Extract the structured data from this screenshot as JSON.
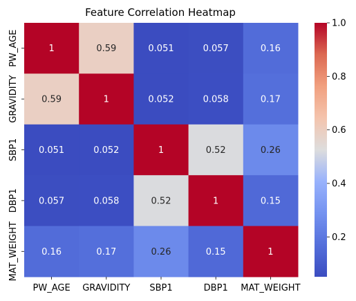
{
  "chart_data": {
    "type": "heatmap",
    "title": "Feature Correlation Heatmap",
    "xlabel": "",
    "ylabel": "",
    "x_categories": [
      "PW_AGE",
      "GRAVIDITY",
      "SBP1",
      "DBP1",
      "MAT_WEIGHT"
    ],
    "y_categories": [
      "PW_AGE",
      "GRAVIDITY",
      "SBP1",
      "DBP1",
      "MAT_WEIGHT"
    ],
    "values": [
      [
        1,
        0.59,
        0.051,
        0.057,
        0.16
      ],
      [
        0.59,
        1,
        0.052,
        0.058,
        0.17
      ],
      [
        0.051,
        0.052,
        1,
        0.52,
        0.26
      ],
      [
        0.057,
        0.058,
        0.52,
        1,
        0.15
      ],
      [
        0.16,
        0.17,
        0.26,
        0.15,
        1
      ]
    ],
    "labels": [
      [
        "1",
        "0.59",
        "0.051",
        "0.057",
        "0.16"
      ],
      [
        "0.59",
        "1",
        "0.052",
        "0.058",
        "0.17"
      ],
      [
        "0.051",
        "0.052",
        "1",
        "0.52",
        "0.26"
      ],
      [
        "0.057",
        "0.058",
        "0.52",
        "1",
        "0.15"
      ],
      [
        "0.16",
        "0.17",
        "0.26",
        "0.15",
        "1"
      ]
    ],
    "colormap": "coolwarm",
    "color_range": [
      0.051,
      1.0
    ],
    "colorbar": {
      "ticks": [
        0.2,
        0.4,
        0.6,
        0.8,
        1.0
      ],
      "tick_labels": [
        "0.2",
        "0.4",
        "0.6",
        "0.8",
        "1.0"
      ]
    },
    "colors": {
      "low": "#3b4cc0",
      "mid": "#dddddd",
      "high": "#b40426"
    }
  }
}
